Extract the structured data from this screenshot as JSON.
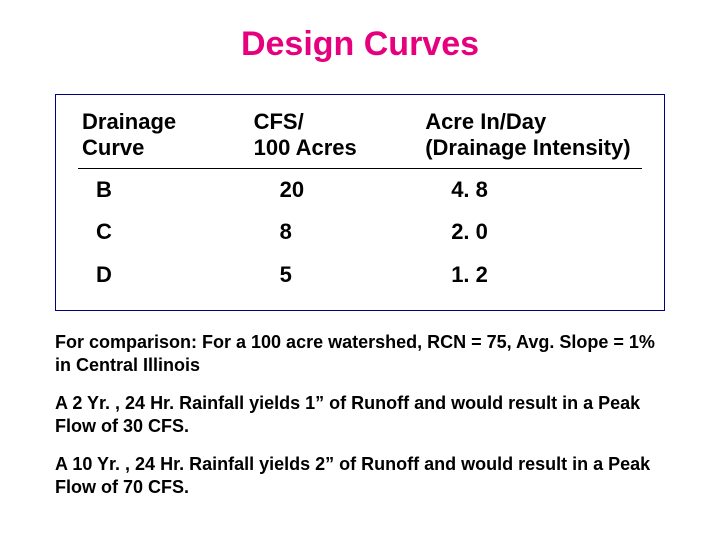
{
  "title": "Design Curves",
  "table": {
    "columns": [
      "Drainage Curve",
      "CFS/\n100 Acres",
      "Acre In/Day\n(Drainage Intensity)"
    ],
    "rows": [
      [
        "B",
        "20",
        "4. 8"
      ],
      [
        "C",
        "8",
        "2. 0"
      ],
      [
        "D",
        "5",
        "1. 2"
      ]
    ],
    "border_color": "#000080",
    "text_color": "#000000",
    "header_fontsize": 22,
    "cell_fontsize": 22,
    "divider_color": "#000000"
  },
  "paragraphs": [
    "For comparison:  For a 100 acre watershed, RCN = 75, Avg. Slope = 1% in Central Illinois",
    "A 2 Yr. , 24 Hr. Rainfall yields 1” of Runoff and would result in a Peak  Flow of 30 CFS.",
    "A 10 Yr. , 24 Hr. Rainfall yields 2” of Runoff and would result in a Peak Flow of 70 CFS."
  ],
  "title_color": "#e6007e",
  "background_color": "#ffffff"
}
